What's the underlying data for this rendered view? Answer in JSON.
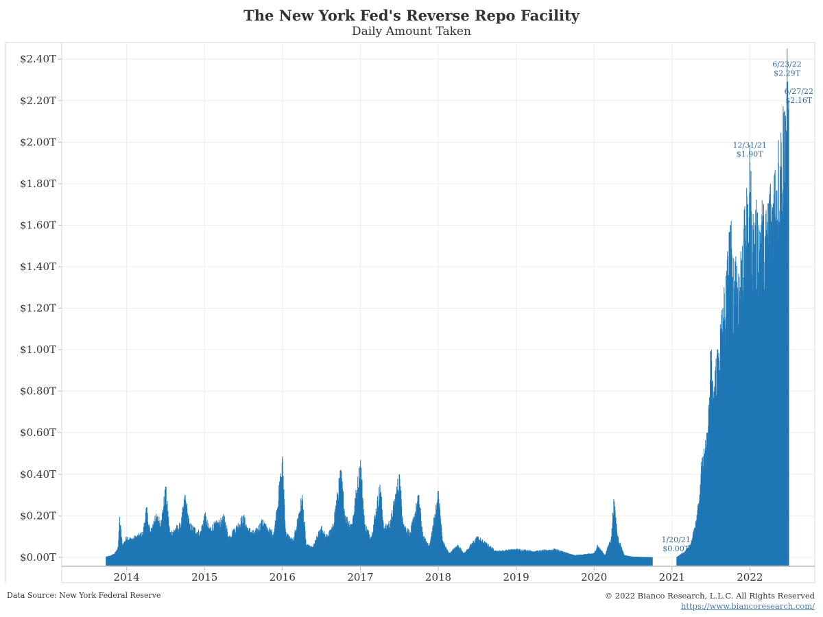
{
  "header": {
    "title": "The New York Fed's Reverse Repo Facility",
    "subtitle": "Daily Amount Taken"
  },
  "footer": {
    "source": "Data Source: New York Federal Reserve",
    "copyright": "© 2022 Bianco Research, L.L.C. All Rights Reserved",
    "link": "https://www.biancoresearch.com/"
  },
  "colors": {
    "bar": "#1f77b4",
    "grid": "#ececec",
    "annotation": "#2c6aa0"
  },
  "chart_data": {
    "type": "bar",
    "title": "The New York Fed's Reverse Repo Facility",
    "subtitle": "Daily Amount Taken",
    "xlabel": "",
    "ylabel": "",
    "units": "trillions of USD",
    "x_range": [
      "2013-03",
      "2022-11"
    ],
    "ylim": [
      -0.04,
      2.48
    ],
    "y_ticks": [
      0.0,
      0.2,
      0.4,
      0.6,
      0.8,
      1.0,
      1.2,
      1.4,
      1.6,
      1.8,
      2.0,
      2.2,
      2.4
    ],
    "y_tick_labels": [
      "$0.00T",
      "$0.20T",
      "$0.40T",
      "$0.60T",
      "$0.80T",
      "$1.00T",
      "$1.20T",
      "$1.40T",
      "$1.60T",
      "$1.80T",
      "$2.00T",
      "$2.20T",
      "$2.40T"
    ],
    "x_ticks": [
      "2014",
      "2015",
      "2016",
      "2017",
      "2018",
      "2019",
      "2020",
      "2021",
      "2022"
    ],
    "grid": true,
    "series": [
      {
        "date_values": [
          [
            "2013-09-25",
            0.003
          ],
          [
            "2013-10-15",
            0.008
          ],
          [
            "2013-11-05",
            0.02
          ],
          [
            "2013-11-20",
            0.05
          ],
          [
            "2013-11-28",
            0.195
          ],
          [
            "2013-12-10",
            0.06
          ],
          [
            "2013-12-31",
            0.1
          ],
          [
            "2014-01-20",
            0.09
          ],
          [
            "2014-02-10",
            0.1
          ],
          [
            "2014-03-15",
            0.12
          ],
          [
            "2014-03-31",
            0.24
          ],
          [
            "2014-04-20",
            0.12
          ],
          [
            "2014-05-10",
            0.2
          ],
          [
            "2014-06-10",
            0.18
          ],
          [
            "2014-06-30",
            0.34
          ],
          [
            "2014-07-20",
            0.12
          ],
          [
            "2014-08-15",
            0.14
          ],
          [
            "2014-09-10",
            0.16
          ],
          [
            "2014-09-30",
            0.3
          ],
          [
            "2014-10-20",
            0.16
          ],
          [
            "2014-11-15",
            0.14
          ],
          [
            "2014-12-10",
            0.12
          ],
          [
            "2014-12-31",
            0.21
          ],
          [
            "2015-01-20",
            0.14
          ],
          [
            "2015-02-15",
            0.16
          ],
          [
            "2015-03-20",
            0.18
          ],
          [
            "2015-03-31",
            0.2
          ],
          [
            "2015-04-20",
            0.1
          ],
          [
            "2015-05-20",
            0.14
          ],
          [
            "2015-06-30",
            0.2
          ],
          [
            "2015-07-20",
            0.14
          ],
          [
            "2015-08-20",
            0.12
          ],
          [
            "2015-09-30",
            0.18
          ],
          [
            "2015-10-20",
            0.14
          ],
          [
            "2015-11-20",
            0.12
          ],
          [
            "2015-12-31",
            0.475
          ],
          [
            "2016-01-15",
            0.12
          ],
          [
            "2016-02-20",
            0.08
          ],
          [
            "2016-03-31",
            0.3
          ],
          [
            "2016-04-20",
            0.06
          ],
          [
            "2016-05-20",
            0.05
          ],
          [
            "2016-06-30",
            0.15
          ],
          [
            "2016-07-20",
            0.1
          ],
          [
            "2016-08-20",
            0.14
          ],
          [
            "2016-09-30",
            0.42
          ],
          [
            "2016-10-20",
            0.2
          ],
          [
            "2016-11-20",
            0.16
          ],
          [
            "2016-12-31",
            0.468
          ],
          [
            "2017-01-20",
            0.16
          ],
          [
            "2017-02-20",
            0.1
          ],
          [
            "2017-03-31",
            0.35
          ],
          [
            "2017-04-20",
            0.14
          ],
          [
            "2017-05-20",
            0.18
          ],
          [
            "2017-06-30",
            0.4
          ],
          [
            "2017-07-20",
            0.16
          ],
          [
            "2017-08-20",
            0.12
          ],
          [
            "2017-09-30",
            0.3
          ],
          [
            "2017-10-20",
            0.1
          ],
          [
            "2017-11-20",
            0.06
          ],
          [
            "2017-12-31",
            0.32
          ],
          [
            "2018-01-20",
            0.08
          ],
          [
            "2018-02-20",
            0.02
          ],
          [
            "2018-03-31",
            0.06
          ],
          [
            "2018-04-30",
            0.02
          ],
          [
            "2018-06-30",
            0.1
          ],
          [
            "2018-09-30",
            0.03
          ],
          [
            "2018-12-31",
            0.04
          ],
          [
            "2019-03-31",
            0.03
          ],
          [
            "2019-06-30",
            0.04
          ],
          [
            "2019-09-30",
            0.01
          ],
          [
            "2019-12-31",
            0.02
          ],
          [
            "2020-01-15",
            0.06
          ],
          [
            "2020-02-20",
            0.01
          ],
          [
            "2020-03-20",
            0.1
          ],
          [
            "2020-03-31",
            0.28
          ],
          [
            "2020-04-20",
            0.1
          ],
          [
            "2020-05-20",
            0.01
          ],
          [
            "2020-06-30",
            0.003
          ],
          [
            "2020-10-01",
            0.0
          ],
          [
            "2021-01-20",
            0.0
          ],
          [
            "2021-03-01",
            0.03
          ],
          [
            "2021-03-31",
            0.08
          ],
          [
            "2021-04-10",
            0.13
          ],
          [
            "2021-04-30",
            0.25
          ],
          [
            "2021-05-10",
            0.35
          ],
          [
            "2021-05-20",
            0.48
          ],
          [
            "2021-06-01",
            0.5
          ],
          [
            "2021-06-15",
            0.6
          ],
          [
            "2021-06-30",
            0.99
          ],
          [
            "2021-07-10",
            0.8
          ],
          [
            "2021-07-20",
            0.9
          ],
          [
            "2021-08-01",
            1.0
          ],
          [
            "2021-08-15",
            1.1
          ],
          [
            "2021-08-25",
            1.2
          ],
          [
            "2021-09-10",
            1.3
          ],
          [
            "2021-09-30",
            1.6
          ],
          [
            "2021-10-10",
            1.35
          ],
          [
            "2021-10-25",
            1.45
          ],
          [
            "2021-11-10",
            1.35
          ],
          [
            "2021-11-25",
            1.5
          ],
          [
            "2021-12-10",
            1.6
          ],
          [
            "2021-12-20",
            1.7
          ],
          [
            "2021-12-31",
            1.9
          ],
          [
            "2022-01-10",
            1.6
          ],
          [
            "2022-01-25",
            1.6
          ],
          [
            "2022-02-10",
            1.6
          ],
          [
            "2022-02-25",
            1.65
          ],
          [
            "2022-03-10",
            1.55
          ],
          [
            "2022-03-31",
            1.75
          ],
          [
            "2022-04-10",
            1.7
          ],
          [
            "2022-04-25",
            1.85
          ],
          [
            "2022-05-10",
            1.9
          ],
          [
            "2022-05-25",
            2.0
          ],
          [
            "2022-06-10",
            2.15
          ],
          [
            "2022-06-23",
            2.29
          ],
          [
            "2022-06-27",
            2.16
          ],
          [
            "2022-06-30",
            2.2
          ]
        ]
      }
    ],
    "annotations": [
      {
        "date_label": "1/20/21",
        "value_label": "$0.00T",
        "x": "2021-01-20",
        "y": 0.0
      },
      {
        "date_label": "12/31/21",
        "value_label": "$1.90T",
        "x": "2021-12-31",
        "y": 1.9
      },
      {
        "date_label": "6/23/22",
        "value_label": "$2.29T",
        "x": "2022-06-23",
        "y": 2.29
      },
      {
        "date_label": "6/27/22",
        "value_label": "$2.16T",
        "x": "2022-06-27",
        "y": 2.16
      }
    ]
  }
}
